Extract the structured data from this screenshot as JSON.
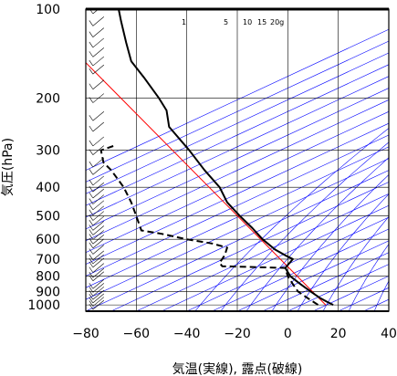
{
  "chart_data": {
    "type": "line",
    "title": "",
    "xlabel": "気温(実線), 露点(破線)",
    "ylabel": "気圧(hPa)",
    "xlim": [
      -80,
      40
    ],
    "ylim_hpa": [
      1050,
      100
    ],
    "y_scale": "log",
    "grid": true,
    "xticks": [
      -80,
      -60,
      -40,
      -20,
      0,
      20,
      40
    ],
    "yticks": [
      100,
      200,
      300,
      400,
      500,
      600,
      700,
      800,
      900,
      1000
    ],
    "mixing_ratio_labels": [
      {
        "text": "1",
        "w": 1
      },
      {
        "text": "5",
        "w": 5
      },
      {
        "text": "10",
        "w": 10
      },
      {
        "text": "15",
        "w": 15
      },
      {
        "text": "20g",
        "w": 20
      }
    ],
    "series": [
      {
        "style": "solid",
        "color": "#000000",
        "points": [
          [
            1000,
            18
          ],
          [
            975,
            15.5
          ],
          [
            950,
            13
          ],
          [
            925,
            11
          ],
          [
            900,
            9
          ],
          [
            875,
            7
          ],
          [
            850,
            5
          ],
          [
            800,
            1
          ],
          [
            750,
            -1
          ],
          [
            700,
            2
          ],
          [
            680,
            -1
          ],
          [
            650,
            -5
          ],
          [
            600,
            -10
          ],
          [
            550,
            -14
          ],
          [
            500,
            -19
          ],
          [
            450,
            -24
          ],
          [
            400,
            -27
          ],
          [
            350,
            -33
          ],
          [
            300,
            -39
          ],
          [
            250,
            -47
          ],
          [
            220,
            -48
          ],
          [
            200,
            -51
          ],
          [
            170,
            -57
          ],
          [
            150,
            -62
          ],
          [
            130,
            -64
          ],
          [
            110,
            -66
          ],
          [
            100,
            -67
          ]
        ]
      },
      {
        "style": "dashed",
        "color": "#000000",
        "points": [
          [
            1000,
            12
          ],
          [
            950,
            8
          ],
          [
            900,
            4
          ],
          [
            850,
            2
          ],
          [
            800,
            0
          ],
          [
            750,
            -1
          ],
          [
            740,
            -26
          ],
          [
            720,
            -27
          ],
          [
            680,
            -25
          ],
          [
            640,
            -24
          ],
          [
            620,
            -30
          ],
          [
            600,
            -40
          ],
          [
            575,
            -50
          ],
          [
            560,
            -58
          ],
          [
            500,
            -60
          ],
          [
            450,
            -62
          ],
          [
            400,
            -65
          ],
          [
            350,
            -70
          ],
          [
            330,
            -73
          ],
          [
            300,
            -74
          ],
          [
            290,
            -69
          ]
        ]
      }
    ],
    "reference_line": {
      "color": "#ff0000",
      "points": [
        [
          1000,
          15
        ],
        [
          100,
          -101
        ]
      ]
    },
    "wind_barbs_hpa": [
      1000,
      975,
      950,
      925,
      900,
      875,
      850,
      800,
      780,
      750,
      720,
      700,
      680,
      650,
      620,
      600,
      580,
      560,
      540,
      520,
      500,
      480,
      460,
      440,
      420,
      400,
      380,
      350,
      330,
      300,
      280,
      250,
      230,
      200,
      180,
      160,
      150,
      140,
      130,
      120,
      110,
      100
    ],
    "colors": {
      "grid": "#000000",
      "isotherm": "#0000ff",
      "reference": "#ff0000",
      "profile": "#000000"
    }
  }
}
